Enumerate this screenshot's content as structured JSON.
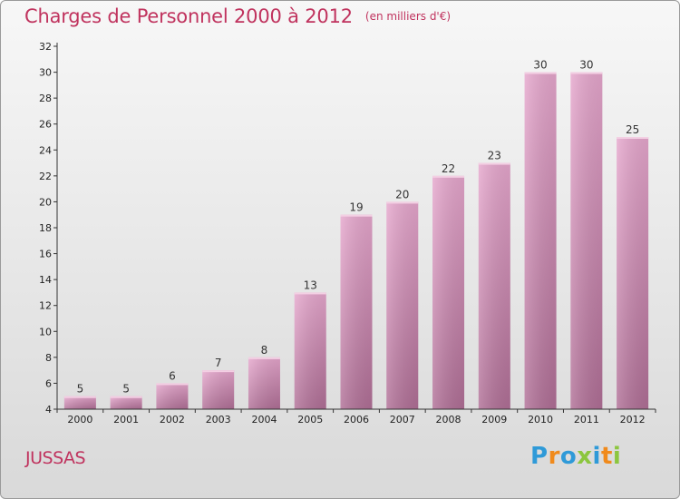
{
  "chart_data": {
    "type": "bar",
    "title": "Charges de Personnel 2000 à 2012",
    "subtitle": "(en milliers d'€)",
    "categories": [
      "2000",
      "2001",
      "2002",
      "2003",
      "2004",
      "2005",
      "2006",
      "2007",
      "2008",
      "2009",
      "2010",
      "2011",
      "2012"
    ],
    "values": [
      5,
      5,
      6,
      7,
      8,
      13,
      19,
      20,
      22,
      23,
      30,
      30,
      25
    ],
    "ylim": [
      4,
      32
    ],
    "yticks": [
      4,
      6,
      8,
      10,
      12,
      14,
      16,
      18,
      20,
      22,
      24,
      26,
      28,
      30,
      32
    ],
    "grid": false,
    "legend": "none",
    "bar_color_top": "#e6a7cd",
    "bar_color_bottom": "#b06f96"
  },
  "footer": {
    "place": "JUSSAS",
    "brand": "Proxiti"
  },
  "colors": {
    "title": "#c0335e",
    "brand_p": "#2f9ad8",
    "brand_r": "#f08a1c",
    "brand_o": "#2f9ad8",
    "brand_x": "#8cc63f",
    "brand_i1": "#2f9ad8",
    "brand_t": "#f08a1c",
    "brand_i2": "#8cc63f"
  }
}
